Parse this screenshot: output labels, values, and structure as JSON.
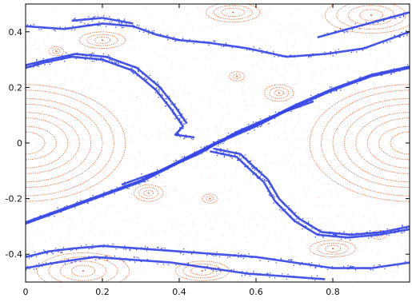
{
  "chart_data": {
    "type": "scatter",
    "title": "",
    "xlabel": "",
    "ylabel": "",
    "xlim": [
      0,
      1
    ],
    "ylim": [
      -0.5,
      0.5
    ],
    "grid": false,
    "legend": "none",
    "x_ticks": [
      0,
      0.2,
      0.4,
      0.6,
      0.8
    ],
    "x_tick_labels": [
      "0",
      "0.2",
      "0.4",
      "0.6",
      "0.8"
    ],
    "y_ticks": [
      -0.4,
      -0.2,
      0,
      0.2,
      0.4
    ],
    "y_tick_labels": [
      "-0.4",
      "-0.2",
      "0",
      "0.2",
      "0.4"
    ],
    "colors": {
      "chaotic_orbits": "#3344e6",
      "regular_orbits": "#e8602a",
      "sea": "#f5b8a4",
      "axes": "#000000"
    },
    "series": [
      {
        "role": "chaotic_diagonal_band",
        "curves": [
          [
            [
              0.0,
              -0.29
            ],
            [
              0.1,
              -0.24
            ],
            [
              0.2,
              -0.19
            ],
            [
              0.3,
              -0.14
            ],
            [
              0.4,
              -0.07
            ],
            [
              0.5,
              0.0
            ],
            [
              0.6,
              0.06
            ],
            [
              0.7,
              0.13
            ],
            [
              0.8,
              0.19
            ],
            [
              0.9,
              0.24
            ],
            [
              1.0,
              0.27
            ]
          ],
          [
            [
              0.0,
              -0.285
            ],
            [
              0.1,
              -0.235
            ],
            [
              0.2,
              -0.185
            ],
            [
              0.3,
              -0.135
            ],
            [
              0.4,
              -0.065
            ],
            [
              0.5,
              0.005
            ],
            [
              0.6,
              0.065
            ],
            [
              0.7,
              0.135
            ],
            [
              0.8,
              0.195
            ],
            [
              0.9,
              0.245
            ],
            [
              1.0,
              0.275
            ]
          ],
          [
            [
              0.25,
              -0.15
            ],
            [
              0.35,
              -0.1
            ],
            [
              0.45,
              -0.04
            ],
            [
              0.55,
              0.04
            ],
            [
              0.65,
              0.1
            ],
            [
              0.75,
              0.15
            ]
          ]
        ]
      },
      {
        "role": "chaotic_upper_separatrix",
        "curves": [
          [
            [
              0.0,
              0.27
            ],
            [
              0.05,
              0.29
            ],
            [
              0.12,
              0.31
            ],
            [
              0.2,
              0.3
            ],
            [
              0.28,
              0.26
            ],
            [
              0.34,
              0.19
            ],
            [
              0.38,
              0.12
            ],
            [
              0.41,
              0.06
            ],
            [
              0.39,
              0.03
            ],
            [
              0.44,
              0.02
            ]
          ],
          [
            [
              0.0,
              0.28
            ],
            [
              0.06,
              0.3
            ],
            [
              0.13,
              0.32
            ],
            [
              0.21,
              0.31
            ],
            [
              0.29,
              0.27
            ],
            [
              0.35,
              0.2
            ],
            [
              0.39,
              0.13
            ],
            [
              0.42,
              0.07
            ]
          ],
          [
            [
              0.0,
              0.42
            ],
            [
              0.1,
              0.41
            ],
            [
              0.2,
              0.43
            ],
            [
              0.28,
              0.42
            ],
            [
              0.34,
              0.39
            ],
            [
              0.4,
              0.37
            ],
            [
              0.48,
              0.36
            ],
            [
              0.58,
              0.34
            ],
            [
              0.68,
              0.31
            ],
            [
              0.78,
              0.32
            ],
            [
              0.88,
              0.34
            ],
            [
              0.96,
              0.38
            ],
            [
              1.0,
              0.4
            ]
          ],
          [
            [
              0.12,
              0.44
            ],
            [
              0.2,
              0.45
            ],
            [
              0.28,
              0.43
            ]
          ],
          [
            [
              0.76,
              0.38
            ],
            [
              0.84,
              0.41
            ],
            [
              0.92,
              0.44
            ],
            [
              1.0,
              0.47
            ]
          ]
        ]
      },
      {
        "role": "chaotic_lower_separatrix",
        "curves": [
          [
            [
              0.48,
              -0.03
            ],
            [
              0.55,
              -0.05
            ],
            [
              0.58,
              -0.09
            ],
            [
              0.62,
              -0.14
            ],
            [
              0.65,
              -0.21
            ],
            [
              0.7,
              -0.28
            ],
            [
              0.76,
              -0.33
            ],
            [
              0.84,
              -0.34
            ],
            [
              0.92,
              -0.33
            ],
            [
              1.0,
              -0.31
            ]
          ],
          [
            [
              0.49,
              -0.02
            ],
            [
              0.56,
              -0.04
            ],
            [
              0.59,
              -0.08
            ],
            [
              0.63,
              -0.13
            ],
            [
              0.66,
              -0.2
            ],
            [
              0.71,
              -0.27
            ],
            [
              0.77,
              -0.32
            ],
            [
              0.85,
              -0.33
            ],
            [
              0.93,
              -0.32
            ],
            [
              1.0,
              -0.3
            ]
          ],
          [
            [
              0.0,
              -0.41
            ],
            [
              0.06,
              -0.39
            ],
            [
              0.12,
              -0.38
            ],
            [
              0.2,
              -0.37
            ],
            [
              0.3,
              -0.38
            ],
            [
              0.4,
              -0.39
            ],
            [
              0.5,
              -0.4
            ],
            [
              0.6,
              -0.41
            ],
            [
              0.7,
              -0.43
            ],
            [
              0.8,
              -0.45
            ],
            [
              0.9,
              -0.45
            ],
            [
              1.0,
              -0.43
            ]
          ],
          [
            [
              0.0,
              -0.45
            ],
            [
              0.08,
              -0.43
            ],
            [
              0.18,
              -0.41
            ],
            [
              0.28,
              -0.42
            ],
            [
              0.38,
              -0.43
            ],
            [
              0.48,
              -0.45
            ],
            [
              0.58,
              -0.47
            ],
            [
              0.68,
              -0.48
            ],
            [
              0.78,
              -0.49
            ]
          ]
        ]
      },
      {
        "role": "regular_islands",
        "islands": [
          {
            "cx": 0.0,
            "cy": 0.0,
            "rx": [
              0.05,
              0.08,
              0.11,
              0.14,
              0.17,
              0.2,
              0.23,
              0.26
            ],
            "ry": [
              0.04,
              0.06,
              0.09,
              0.11,
              0.14,
              0.16,
              0.19,
              0.21
            ]
          },
          {
            "cx": 1.0,
            "cy": 0.0,
            "rx": [
              0.05,
              0.08,
              0.11,
              0.14,
              0.17,
              0.2,
              0.23,
              0.26
            ],
            "ry": [
              0.04,
              0.06,
              0.09,
              0.11,
              0.14,
              0.16,
              0.19,
              0.21
            ]
          },
          {
            "cx": 0.9,
            "cy": 0.46,
            "rx": [
              0.03,
              0.06,
              0.09,
              0.12
            ],
            "ry": [
              0.02,
              0.035,
              0.05,
              0.065
            ]
          },
          {
            "cx": 0.15,
            "cy": -0.46,
            "rx": [
              0.03,
              0.06,
              0.09,
              0.12
            ],
            "ry": [
              0.02,
              0.035,
              0.05,
              0.065
            ]
          },
          {
            "cx": 0.54,
            "cy": 0.47,
            "rx": [
              0.03,
              0.05,
              0.07
            ],
            "ry": [
              0.015,
              0.025,
              0.035
            ]
          },
          {
            "cx": 0.46,
            "cy": -0.46,
            "rx": [
              0.03,
              0.05,
              0.07
            ],
            "ry": [
              0.015,
              0.025,
              0.035
            ]
          },
          {
            "cx": 0.2,
            "cy": 0.37,
            "rx": [
              0.02,
              0.04,
              0.06
            ],
            "ry": [
              0.012,
              0.02,
              0.03
            ]
          },
          {
            "cx": 0.8,
            "cy": -0.38,
            "rx": [
              0.02,
              0.04,
              0.06
            ],
            "ry": [
              0.012,
              0.02,
              0.03
            ]
          },
          {
            "cx": 0.66,
            "cy": 0.18,
            "rx": [
              0.012,
              0.025,
              0.038
            ],
            "ry": [
              0.01,
              0.02,
              0.03
            ]
          },
          {
            "cx": 0.32,
            "cy": -0.18,
            "rx": [
              0.012,
              0.025,
              0.038
            ],
            "ry": [
              0.01,
              0.02,
              0.03
            ]
          },
          {
            "cx": 0.55,
            "cy": 0.24,
            "rx": [
              0.01,
              0.02
            ],
            "ry": [
              0.008,
              0.016
            ]
          },
          {
            "cx": 0.48,
            "cy": -0.2,
            "rx": [
              0.01,
              0.02
            ],
            "ry": [
              0.008,
              0.016
            ]
          },
          {
            "cx": 0.08,
            "cy": 0.33,
            "rx": [
              0.01,
              0.02
            ],
            "ry": [
              0.008,
              0.016
            ]
          },
          {
            "cx": 0.92,
            "cy": -0.33,
            "rx": [
              0.01,
              0.02
            ],
            "ry": [
              0.008,
              0.016
            ]
          }
        ]
      }
    ]
  }
}
